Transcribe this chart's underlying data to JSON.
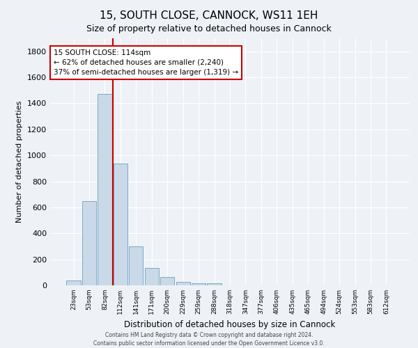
{
  "title": "15, SOUTH CLOSE, CANNOCK, WS11 1EH",
  "subtitle": "Size of property relative to detached houses in Cannock",
  "xlabel": "Distribution of detached houses by size in Cannock",
  "ylabel": "Number of detached properties",
  "bar_color": "#c9d9e8",
  "bar_edge_color": "#7aaac8",
  "vline_color": "#cc0000",
  "annotation_title": "15 SOUTH CLOSE: 114sqm",
  "annotation_line1": "← 62% of detached houses are smaller (2,240)",
  "annotation_line2": "37% of semi-detached houses are larger (1,319) →",
  "bins": [
    "23sqm",
    "53sqm",
    "82sqm",
    "112sqm",
    "141sqm",
    "171sqm",
    "200sqm",
    "229sqm",
    "259sqm",
    "288sqm",
    "318sqm",
    "347sqm",
    "377sqm",
    "406sqm",
    "435sqm",
    "465sqm",
    "494sqm",
    "524sqm",
    "553sqm",
    "583sqm",
    "612sqm"
  ],
  "values": [
    40,
    650,
    1470,
    935,
    300,
    135,
    65,
    25,
    15,
    15,
    0,
    0,
    0,
    0,
    0,
    0,
    0,
    0,
    0,
    0,
    0
  ],
  "ylim": [
    0,
    1900
  ],
  "yticks": [
    0,
    200,
    400,
    600,
    800,
    1000,
    1200,
    1400,
    1600,
    1800
  ],
  "footer1": "Contains HM Land Registry data © Crown copyright and database right 2024.",
  "footer2": "Contains public sector information licensed under the Open Government Licence v3.0.",
  "bg_color": "#eef2f7",
  "grid_color": "#ffffff",
  "annotation_box_color": "#ffffff",
  "annotation_box_edge": "#cc0000"
}
